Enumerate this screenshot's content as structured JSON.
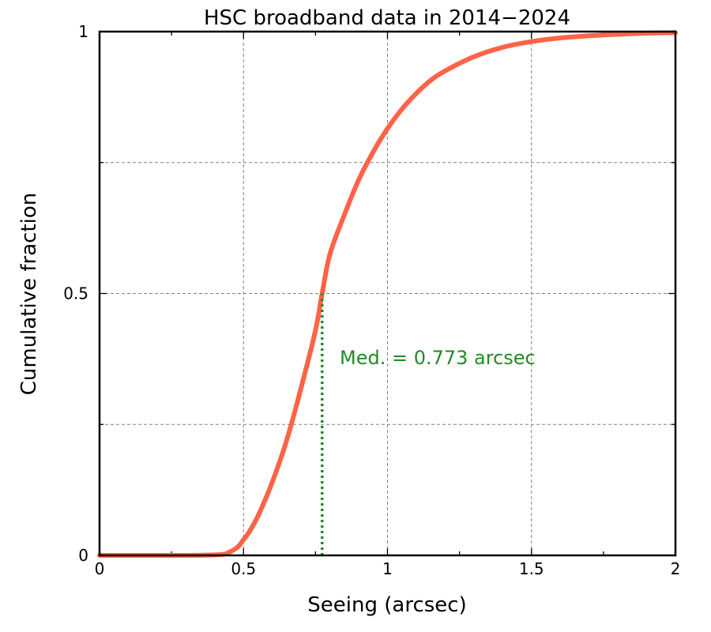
{
  "chart_data": {
    "type": "line",
    "title": "HSC broadband data in 2014−2024",
    "xlabel": "Seeing (arcsec)",
    "ylabel": "Cumulative fraction",
    "xlim": [
      0,
      2
    ],
    "ylim": [
      0,
      1
    ],
    "xticks": [
      0,
      0.5,
      1,
      1.5,
      2
    ],
    "xtick_labels": [
      "0",
      "0.5",
      "1",
      "1.5",
      "2"
    ],
    "yticks": [
      0,
      0.5,
      1
    ],
    "ytick_labels": [
      "0",
      "0.5",
      "1"
    ],
    "grid": true,
    "series": [
      {
        "color": "#ff6347",
        "x": [
          0,
          0.3,
          0.42,
          0.45,
          0.48,
          0.5,
          0.52,
          0.55,
          0.6,
          0.65,
          0.7,
          0.75,
          0.773,
          0.8,
          0.85,
          0.9,
          0.95,
          1.0,
          1.05,
          1.1,
          1.15,
          1.2,
          1.3,
          1.4,
          1.5,
          1.6,
          1.7,
          1.8,
          1.9,
          2.0
        ],
        "y": [
          0,
          0,
          0.0015,
          0.006,
          0.016,
          0.03,
          0.045,
          0.075,
          0.14,
          0.22,
          0.32,
          0.43,
          0.5,
          0.575,
          0.65,
          0.717,
          0.77,
          0.815,
          0.852,
          0.882,
          0.907,
          0.925,
          0.952,
          0.97,
          0.981,
          0.988,
          0.992,
          0.995,
          0.997,
          0.998
        ]
      }
    ],
    "median": {
      "x": 0.773,
      "y": 0.5,
      "color": "#228b22",
      "label": "Med. = 0.773 arcsec"
    }
  }
}
